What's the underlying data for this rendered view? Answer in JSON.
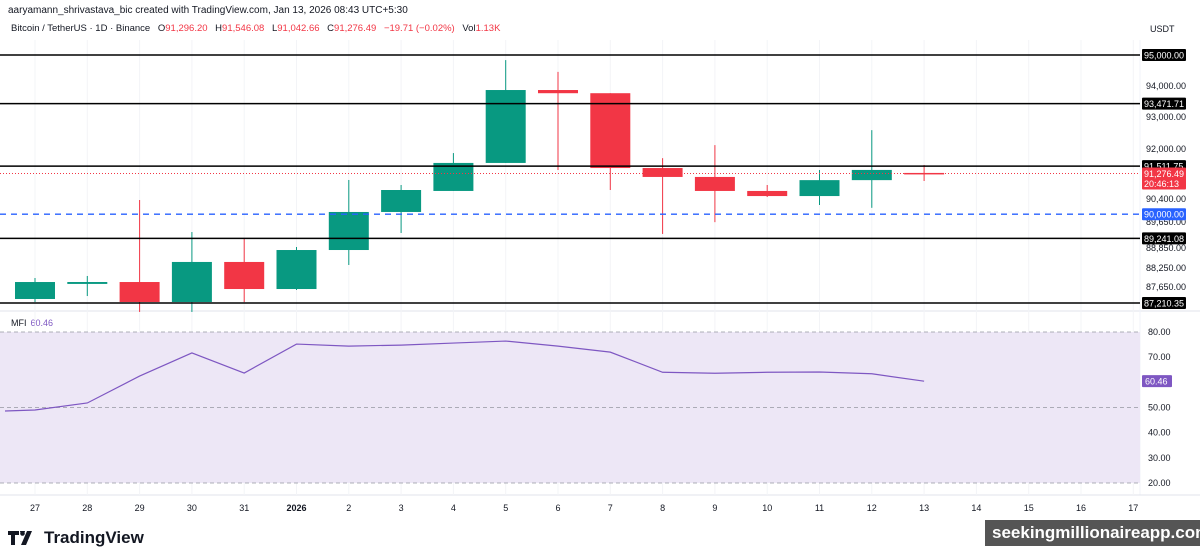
{
  "header": {
    "credit": "aaryamann_shrivastava_bic created with TradingView.com, Jan 13, 2026 08:43 UTC+5:30",
    "symbol": "Bitcoin / TetherUS · 1D · Binance",
    "o_label": "O",
    "o": "91,296.20",
    "h_label": "H",
    "h": "91,546.08",
    "l_label": "L",
    "l": "91,042.66",
    "c_label": "C",
    "c": "91,276.49",
    "change": "−19.71 (−0.02%)",
    "vol_label": "Vol",
    "vol": "1.13K",
    "currency": "USDT"
  },
  "mfi": {
    "label": "MFI",
    "value": "60.46"
  },
  "footer": {
    "brand": "TradingView",
    "watermark": "seekingmillionaireapp.com"
  },
  "colors": {
    "up": "#089981",
    "down": "#f23645",
    "mfi_line": "#7e57c2",
    "mfi_band": "#ede7f6",
    "blue_level": "#2962ff"
  },
  "chart_data": [
    {
      "type": "candlestick",
      "ylim": [
        87050,
        95400
      ],
      "x_ticks": [
        "27",
        "28",
        "29",
        "30",
        "31",
        "2026",
        "2",
        "3",
        "4",
        "5",
        "6",
        "7",
        "8",
        "9",
        "10",
        "11",
        "12",
        "13",
        "14",
        "15",
        "16",
        "17"
      ],
      "y_ticks": [
        "94,000.00",
        "93,000.00",
        "92,000.00",
        "90,400.00",
        "89,650.00",
        "88,850.00",
        "88,250.00",
        "87,650.00"
      ],
      "candles": [
        {
          "date": "27",
          "o": 87337,
          "h": 87996,
          "l": 87243,
          "c": 87870
        },
        {
          "date": "28",
          "o": 87810,
          "h": 88060,
          "l": 87430,
          "c": 87870
        },
        {
          "date": "29",
          "o": 87870,
          "h": 90446,
          "l": 86930,
          "c": 87243
        },
        {
          "date": "30",
          "o": 87243,
          "h": 89440,
          "l": 86930,
          "c": 88500
        },
        {
          "date": "31",
          "o": 88500,
          "h": 89250,
          "l": 87240,
          "c": 87650
        },
        {
          "date": "2026",
          "o": 87650,
          "h": 88970,
          "l": 87620,
          "c": 88875
        },
        {
          "date": "2",
          "o": 88875,
          "h": 91075,
          "l": 88405,
          "c": 90070
        },
        {
          "date": "3",
          "o": 90070,
          "h": 90917,
          "l": 89410,
          "c": 90760
        },
        {
          "date": "4",
          "o": 90730,
          "h": 91920,
          "l": 90730,
          "c": 91610
        },
        {
          "date": "5",
          "o": 91610,
          "h": 94840,
          "l": 91610,
          "c": 93900
        },
        {
          "date": "6",
          "o": 93900,
          "h": 94470,
          "l": 91390,
          "c": 93800
        },
        {
          "date": "7",
          "o": 93800,
          "h": 93800,
          "l": 90760,
          "c": 91450
        },
        {
          "date": "8",
          "o": 91450,
          "h": 91760,
          "l": 89380,
          "c": 91170
        },
        {
          "date": "9",
          "o": 91170,
          "h": 92170,
          "l": 89750,
          "c": 90730
        },
        {
          "date": "10",
          "o": 90730,
          "h": 90917,
          "l": 90540,
          "c": 90570
        },
        {
          "date": "11",
          "o": 90570,
          "h": 91390,
          "l": 90290,
          "c": 91070
        },
        {
          "date": "12",
          "o": 91070,
          "h": 92640,
          "l": 90200,
          "c": 91390
        },
        {
          "date": "13",
          "o": 91296.2,
          "h": 91546.08,
          "l": 91042.66,
          "c": 91276.49
        }
      ],
      "levels": [
        {
          "price": 95000,
          "label": "95,000.00",
          "style": "solid"
        },
        {
          "price": 93471.71,
          "label": "93,471.71",
          "style": "solid"
        },
        {
          "price": 91511.75,
          "label": "91,511.75",
          "style": "solid"
        },
        {
          "price": 90000,
          "label": "90,000.00",
          "style": "dashed-blue"
        },
        {
          "price": 89241.08,
          "label": "89,241.08",
          "style": "solid"
        },
        {
          "price": 87210.35,
          "label": "87,210.35",
          "style": "solid"
        }
      ],
      "last_price": {
        "price": 91276.49,
        "label": "91,276.49",
        "countdown": "20:46:13"
      }
    },
    {
      "type": "line",
      "name": "MFI",
      "ylim": [
        15,
        83
      ],
      "y_ticks": [
        "80.00",
        "70.00",
        "50.00",
        "40.00",
        "30.00",
        "20.00"
      ],
      "bands": [
        20,
        50,
        80
      ],
      "x": [
        "26",
        "27",
        "28",
        "29",
        "30",
        "31",
        "2026",
        "2",
        "3",
        "4",
        "5",
        "6",
        "7",
        "8",
        "9",
        "10",
        "11",
        "12",
        "13"
      ],
      "values": [
        48.6,
        49,
        51.8,
        62.5,
        71.7,
        63.7,
        75.2,
        74.4,
        74.8,
        75.6,
        76.4,
        74.4,
        72,
        64,
        63.6,
        64,
        64.1,
        63.4,
        60.46
      ]
    }
  ]
}
